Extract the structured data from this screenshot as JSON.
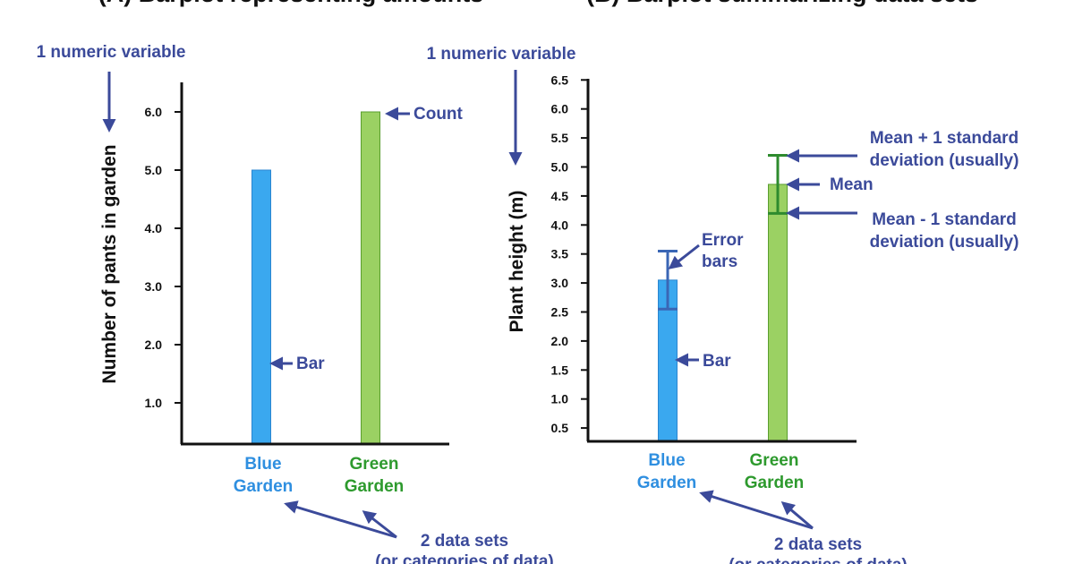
{
  "colors": {
    "annotation": "#3b4a9a",
    "blue_bar": "#3aa8ef",
    "blue_edge": "#2a85d0",
    "blue_text": "#2f8fe0",
    "green_bar": "#9bd163",
    "green_edge": "#5a9e2e",
    "green_text": "#2e9a2e",
    "error_blue": "#3a66b5",
    "error_green": "#2e8b2e",
    "axis": "#111111"
  },
  "chart_data": [
    {
      "type": "bar",
      "title": "(A) Barplot representing amounts",
      "ylabel": "Number of pants in garden",
      "xlabel": "",
      "categories": [
        "Blue Garden",
        "Green Garden"
      ],
      "category_lines": [
        [
          "Blue",
          "Garden"
        ],
        [
          "Green",
          "Garden"
        ]
      ],
      "values": [
        5.0,
        6.0
      ],
      "yticks": [
        "1.0",
        "2.0",
        "3.0",
        "4.0",
        "5.0",
        "6.0"
      ],
      "ylim": [
        0,
        6.5
      ],
      "grid": false,
      "annotations": {
        "top_label": "1 numeric variable",
        "count": "Count",
        "bar": "Bar",
        "data_sets": "2 data sets",
        "data_sets_sub": "(or categories of data)"
      }
    },
    {
      "type": "bar",
      "title": "(B) Barplot summarizing data sets",
      "ylabel": "Plant height (m)",
      "xlabel": "",
      "categories": [
        "Blue Garden",
        "Green Garden"
      ],
      "category_lines": [
        [
          "Blue",
          "Garden"
        ],
        [
          "Green",
          "Garden"
        ]
      ],
      "values": [
        3.05,
        4.7
      ],
      "error_low": [
        2.55,
        4.2
      ],
      "error_high": [
        3.55,
        5.2
      ],
      "yticks": [
        "0.5",
        "1.0",
        "1.5",
        "2.0",
        "2.5",
        "3.0",
        "3.5",
        "4.0",
        "4.5",
        "5.0",
        "5.5",
        "6.0",
        "6.5"
      ],
      "ylim": [
        0.3,
        6.5
      ],
      "grid": false,
      "annotations": {
        "top_label": "1 numeric variable",
        "error_bars": [
          "Error",
          "bars"
        ],
        "bar": "Bar",
        "mean": "Mean",
        "mean_plus": [
          "Mean + 1 standard",
          "deviation (usually)"
        ],
        "mean_minus": [
          "Mean - 1 standard",
          "deviation (usually)"
        ],
        "data_sets": "2 data sets",
        "data_sets_sub": "(or categories of data)"
      }
    }
  ]
}
